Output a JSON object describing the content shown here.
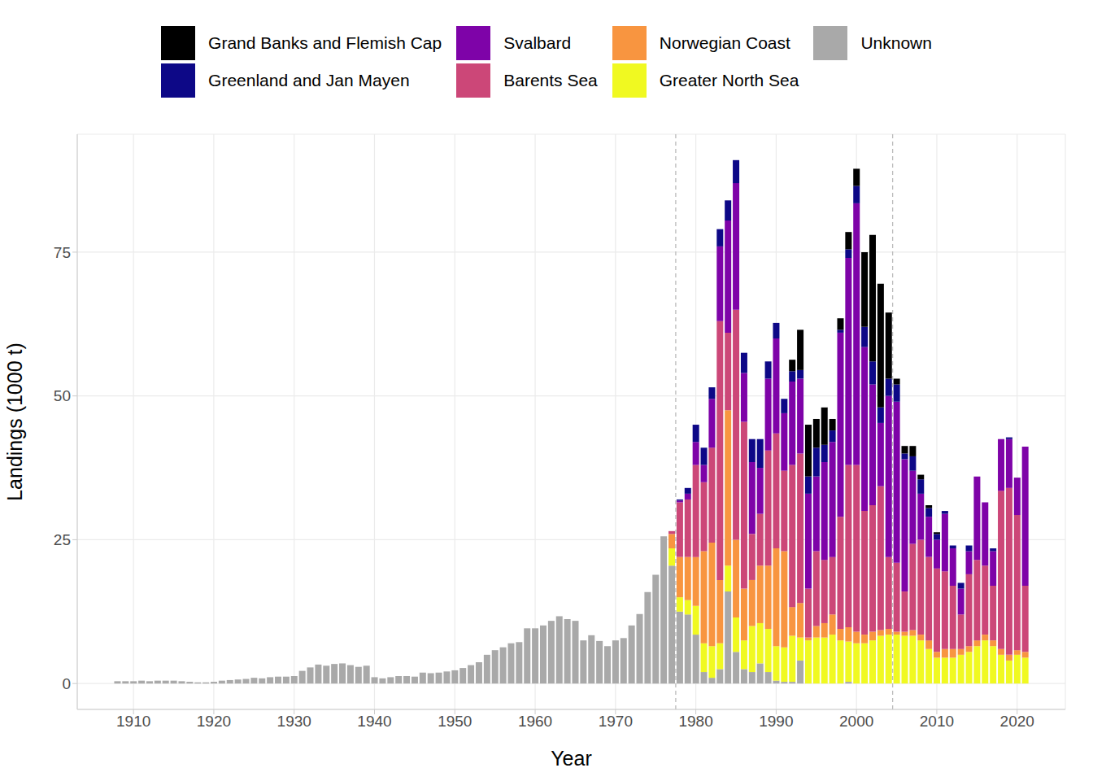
{
  "chart_data": {
    "type": "bar",
    "stacked": true,
    "grid": true,
    "legend": "top",
    "xlabel": "Year",
    "ylabel": "Landings (1000 t)",
    "xlim": [
      1903,
      2026
    ],
    "xticks": [
      1910,
      1920,
      1930,
      1940,
      1950,
      1960,
      1970,
      1980,
      1990,
      2000,
      2010,
      2020
    ],
    "ylim": [
      -4.5,
      95.5
    ],
    "yticks": [
      0,
      25,
      50,
      75
    ],
    "reference_lines": [
      1977.5,
      2004.5
    ],
    "x": [
      1908,
      1909,
      1910,
      1911,
      1912,
      1913,
      1914,
      1915,
      1916,
      1917,
      1918,
      1919,
      1920,
      1921,
      1922,
      1923,
      1924,
      1925,
      1926,
      1927,
      1928,
      1929,
      1930,
      1931,
      1932,
      1933,
      1934,
      1935,
      1936,
      1937,
      1938,
      1939,
      1940,
      1941,
      1942,
      1943,
      1944,
      1945,
      1946,
      1947,
      1948,
      1949,
      1950,
      1951,
      1952,
      1953,
      1954,
      1955,
      1956,
      1957,
      1958,
      1959,
      1960,
      1961,
      1962,
      1963,
      1964,
      1965,
      1966,
      1967,
      1968,
      1969,
      1970,
      1971,
      1972,
      1973,
      1974,
      1975,
      1976,
      1977,
      1978,
      1979,
      1980,
      1981,
      1982,
      1983,
      1984,
      1985,
      1986,
      1987,
      1988,
      1989,
      1990,
      1991,
      1992,
      1993,
      1994,
      1995,
      1996,
      1997,
      1998,
      1999,
      2000,
      2001,
      2002,
      2003,
      2004,
      2005,
      2006,
      2007,
      2008,
      2009,
      2010,
      2011,
      2012,
      2013,
      2014,
      2015,
      2016,
      2017,
      2018,
      2019,
      2020,
      2021
    ],
    "series": [
      {
        "name": "Grand Banks and Flemish Cap",
        "color": "#000000",
        "values": [
          0,
          0,
          0,
          0,
          0,
          0,
          0,
          0,
          0,
          0,
          0,
          0,
          0,
          0,
          0,
          0,
          0,
          0,
          0,
          0,
          0,
          0,
          0,
          0,
          0,
          0,
          0,
          0,
          0,
          0,
          0,
          0,
          0,
          0,
          0,
          0,
          0,
          0,
          0,
          0,
          0,
          0,
          0,
          0,
          0,
          0,
          0,
          0,
          0,
          0,
          0,
          0,
          0,
          0,
          0,
          0,
          0,
          0,
          0,
          0,
          0,
          0,
          0,
          0,
          0,
          0,
          0,
          0,
          0,
          0,
          0,
          0,
          0,
          0,
          0,
          0,
          0,
          0,
          0,
          0,
          0,
          0,
          0,
          0,
          2,
          7,
          9,
          5,
          6.5,
          2,
          2,
          3,
          3,
          13,
          22,
          21.5,
          11.5,
          1,
          1.3,
          1.8,
          0.8,
          0.5,
          0.3,
          0,
          0,
          0,
          0,
          0,
          0,
          0,
          0,
          0,
          0,
          0
        ]
      },
      {
        "name": "Greenland and Jan Mayen",
        "color": "#0d0887",
        "values": [
          0,
          0,
          0,
          0,
          0,
          0,
          0,
          0,
          0,
          0,
          0,
          0,
          0,
          0,
          0,
          0,
          0,
          0,
          0,
          0,
          0,
          0,
          0,
          0,
          0,
          0,
          0,
          0,
          0,
          0,
          0,
          0,
          0,
          0,
          0,
          0,
          0,
          0,
          0,
          0,
          0,
          0,
          0,
          0,
          0,
          0,
          0,
          0,
          0,
          0,
          0,
          0,
          0,
          0,
          0,
          0,
          0,
          0,
          0,
          0,
          0,
          0,
          0,
          0,
          0,
          0,
          0,
          0,
          0,
          0,
          0.2,
          1,
          3,
          3,
          2,
          3,
          3.5,
          4,
          3.5,
          4,
          5,
          3,
          2.7,
          2.5,
          1.8,
          1.5,
          3,
          5,
          3,
          2,
          0.5,
          1.5,
          3,
          3.5,
          4,
          2.7,
          3,
          3,
          1,
          2.5,
          2.5,
          1.5,
          1,
          0.5,
          0.5,
          1,
          1,
          0,
          0,
          0.5,
          0,
          0.3,
          0,
          0
        ]
      },
      {
        "name": "Svalbard",
        "color": "#7e03a8",
        "values": [
          0,
          0,
          0,
          0,
          0,
          0,
          0,
          0,
          0,
          0,
          0,
          0,
          0,
          0,
          0,
          0,
          0,
          0,
          0,
          0,
          0,
          0,
          0,
          0,
          0,
          0,
          0,
          0,
          0,
          0,
          0,
          0,
          0,
          0,
          0,
          0,
          0,
          0,
          0,
          0,
          0,
          0,
          0,
          0,
          0,
          0,
          0,
          0,
          0,
          0,
          0,
          0,
          0,
          0,
          0,
          0,
          0,
          0,
          0,
          0,
          0,
          0,
          0,
          0,
          0,
          0,
          0,
          0,
          0,
          0,
          0.3,
          1,
          4,
          3,
          8.5,
          13,
          19.5,
          22,
          8.5,
          12.5,
          8,
          12.5,
          16.5,
          10,
          14.5,
          13,
          16.5,
          13,
          17,
          20,
          32,
          36,
          45.5,
          28.5,
          21,
          11,
          28,
          28,
          23,
          12.7,
          8,
          7,
          5,
          10,
          6.5,
          4.5,
          4,
          14.5,
          11,
          6,
          9,
          8.5,
          6.5,
          24.2
        ]
      },
      {
        "name": "Barents Sea",
        "color": "#cc4778",
        "values": [
          0,
          0,
          0,
          0,
          0,
          0,
          0,
          0,
          0,
          0,
          0,
          0,
          0,
          0,
          0,
          0,
          0,
          0,
          0,
          0,
          0,
          0,
          0,
          0,
          0,
          0,
          0,
          0,
          0,
          0,
          0,
          0,
          0,
          0,
          0,
          0,
          0,
          0,
          0,
          0,
          0,
          0,
          0,
          0,
          0,
          0,
          0,
          0,
          0,
          0,
          0,
          0,
          0,
          0,
          0,
          0,
          0,
          0,
          0,
          0,
          0,
          0,
          0,
          0,
          0,
          0,
          0,
          0,
          0,
          0.5,
          9.5,
          10,
          16,
          12,
          16.5,
          45,
          13.5,
          40,
          29,
          8,
          9,
          20,
          20,
          14,
          24.7,
          26,
          8.5,
          13,
          11,
          10,
          19.5,
          28.2,
          29,
          21.5,
          22,
          25,
          12.5,
          12,
          7,
          15,
          16.5,
          14.5,
          14.5,
          13.5,
          11,
          6,
          12.5,
          14,
          12,
          9.5,
          27.5,
          29,
          23.5,
          11.5
        ]
      },
      {
        "name": "Norwegian Coast",
        "color": "#f89540",
        "values": [
          0,
          0,
          0,
          0,
          0,
          0,
          0,
          0,
          0,
          0,
          0,
          0,
          0,
          0,
          0,
          0,
          0,
          0,
          0,
          0,
          0,
          0,
          0,
          0,
          0,
          0,
          0,
          0,
          0,
          0,
          0,
          0,
          0,
          0,
          0,
          0,
          0,
          0,
          0,
          0,
          0,
          0,
          0,
          0,
          0,
          0,
          0,
          0,
          0,
          0,
          0,
          0,
          0,
          0,
          0,
          0,
          0,
          0,
          0,
          0,
          0,
          0,
          0,
          0,
          0,
          0,
          0,
          0,
          0,
          2.5,
          7,
          7.5,
          8.5,
          16,
          18,
          11,
          27,
          13.5,
          9,
          8,
          10,
          11,
          17,
          16.7,
          5,
          6,
          0.5,
          2,
          2.5,
          3.5,
          2,
          2.5,
          2,
          1.5,
          1.5,
          1,
          1,
          0.5,
          0.7,
          1,
          1,
          1.5,
          1,
          1.5,
          1.5,
          1,
          1,
          1,
          1,
          1,
          1,
          1,
          0.8,
          1
        ]
      },
      {
        "name": "Greater North Sea",
        "color": "#f0f921",
        "values": [
          0,
          0,
          0,
          0,
          0,
          0,
          0,
          0,
          0,
          0,
          0,
          0,
          0,
          0,
          0,
          0,
          0,
          0,
          0,
          0,
          0,
          0,
          0,
          0,
          0,
          0,
          0,
          0,
          0,
          0,
          0,
          0,
          0,
          0,
          0,
          0,
          0,
          0,
          0,
          0,
          0,
          0,
          0,
          0,
          0,
          0,
          0,
          0,
          0,
          0,
          0,
          0,
          0,
          0,
          0,
          0,
          0,
          0,
          0,
          0,
          0,
          0,
          0,
          0,
          0,
          0,
          0,
          0,
          0,
          3,
          2.5,
          2.5,
          5,
          5,
          5.5,
          4.5,
          4.5,
          6,
          5,
          8,
          7,
          7.5,
          6,
          6,
          8,
          4,
          7.5,
          8,
          8,
          8.5,
          7.5,
          7,
          7,
          7,
          7.5,
          8.3,
          8.5,
          8.5,
          8.3,
          8.3,
          7.5,
          6,
          4.5,
          4.5,
          4.5,
          5,
          5.5,
          6.5,
          7.5,
          6.5,
          5,
          4,
          5,
          4.5
        ]
      },
      {
        "name": "Unknown",
        "color": "#a9a9a9",
        "values": [
          0.4,
          0.4,
          0.4,
          0.5,
          0.4,
          0.5,
          0.5,
          0.5,
          0.4,
          0.3,
          0.2,
          0.2,
          0.3,
          0.5,
          0.6,
          0.7,
          0.8,
          1.0,
          0.9,
          1.1,
          1.2,
          1.2,
          1.3,
          2.2,
          2.8,
          3.3,
          3.1,
          3.4,
          3.5,
          3.2,
          2.9,
          3.1,
          1.1,
          0.9,
          1.1,
          1.3,
          1.3,
          1.2,
          1.9,
          1.8,
          1.9,
          2.1,
          2.3,
          2.7,
          3.2,
          3.7,
          5.0,
          5.8,
          6.3,
          7.0,
          7.2,
          9.6,
          9.6,
          10.1,
          10.9,
          11.7,
          11.2,
          10.9,
          7.5,
          8.4,
          7.4,
          6.5,
          7.5,
          7.9,
          10.1,
          12.1,
          15.9,
          18.9,
          25.6,
          20.5,
          12.5,
          12,
          8.5,
          2,
          1,
          2.5,
          16,
          5.5,
          2.5,
          2,
          3.5,
          2,
          0.5,
          0.3,
          0.3,
          4,
          0,
          0,
          0,
          0,
          0,
          0.3,
          0,
          0,
          0,
          0,
          0,
          0,
          0,
          0,
          0,
          0,
          0,
          0,
          0,
          0,
          0,
          0,
          0,
          0,
          0,
          0,
          0,
          0
        ]
      }
    ]
  }
}
